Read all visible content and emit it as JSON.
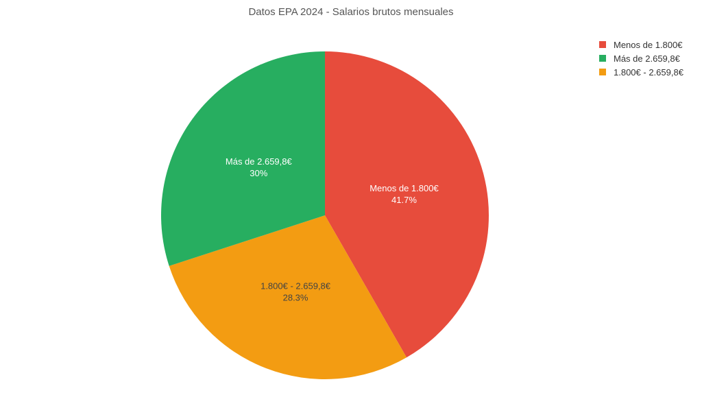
{
  "chart_data": {
    "type": "pie",
    "title": "Datos EPA 2024 - Salarios brutos mensuales",
    "legend_position": "top-right",
    "slices": [
      {
        "name": "Menos de 1.800€",
        "value": 41.7,
        "label": "41.7%",
        "color": "#e74c3c",
        "label_color": "#ffffff"
      },
      {
        "name": "1.800€ - 2.659,8€",
        "value": 28.3,
        "label": "28.3%",
        "color": "#f39c12",
        "label_color": "#444444"
      },
      {
        "name": "Más de 2.659,8€",
        "value": 30,
        "label": "30%",
        "color": "#27ae60",
        "label_color": "#ffffff"
      }
    ],
    "legend": [
      {
        "label": "Menos de 1.800€",
        "color": "#e74c3c"
      },
      {
        "label": "Más de 2.659,8€",
        "color": "#27ae60"
      },
      {
        "label": "1.800€ - 2.659,8€",
        "color": "#f39c12"
      }
    ]
  }
}
